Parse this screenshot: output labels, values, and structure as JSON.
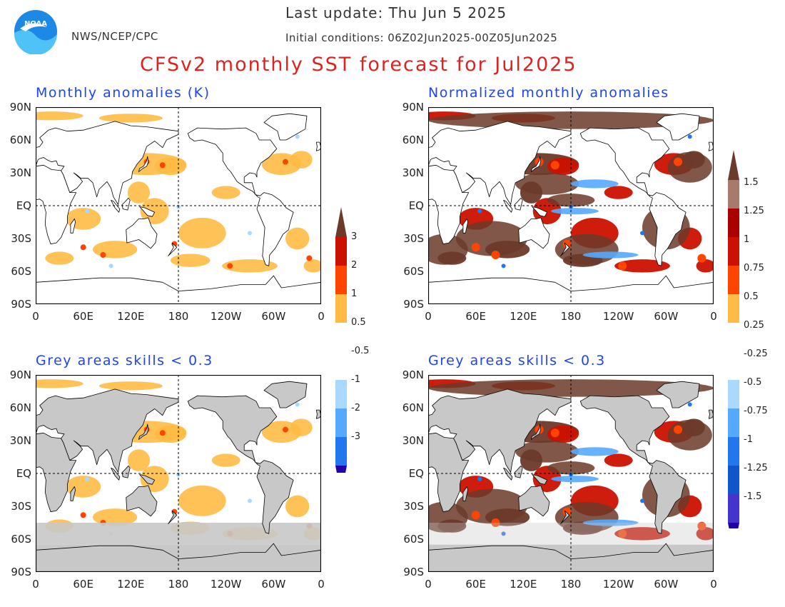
{
  "header": {
    "last_update": "Last update: Thu Jun 5 2025",
    "initial_conditions": "Initial conditions: 06Z02Jun2025-00Z05Jun2025",
    "agency": "NWS/NCEP/CPC",
    "title": "CFSv2 monthly SST forecast for Jul2025",
    "logo_text": "NOAA"
  },
  "panels": [
    {
      "id": "anom",
      "title": "Monthly anomalies (K)"
    },
    {
      "id": "norm",
      "title": "Normalized monthly anomalies"
    },
    {
      "id": "anom-skill",
      "title": "Grey areas skills < 0.3"
    },
    {
      "id": "norm-skill",
      "title": "Grey areas skills < 0.3"
    }
  ],
  "axes": {
    "lat_labels": [
      "90N",
      "60N",
      "30N",
      "EQ",
      "30S",
      "60S",
      "90S"
    ],
    "lon_labels": [
      "0",
      "60E",
      "120E",
      "180",
      "120W",
      "60W",
      "0"
    ]
  },
  "colorbars": {
    "anomaly_k": [
      "3",
      "2",
      "1",
      "0.5",
      "-0.5",
      "-1",
      "-2",
      "-3"
    ],
    "normalized": [
      "1.5",
      "1.25",
      "1",
      "0.75",
      "0.5",
      "0.25",
      "-0.25",
      "-0.5",
      "-0.75",
      "-1",
      "-1.25",
      "-1.5"
    ]
  },
  "colors": {
    "title": "#dd2222",
    "panel_title": "#2244ee",
    "land": "#ffffff",
    "low_skill": "#c8c8c8",
    "warm": [
      "#ffbb44",
      "#ff4400",
      "#cc1100",
      "#aa0000",
      "#a87a6c",
      "#6b3a2a"
    ],
    "cool": [
      "#aad8ff",
      "#55aaff",
      "#2277ee",
      "#1155cc",
      "#4433cc",
      "#2200aa"
    ]
  }
}
